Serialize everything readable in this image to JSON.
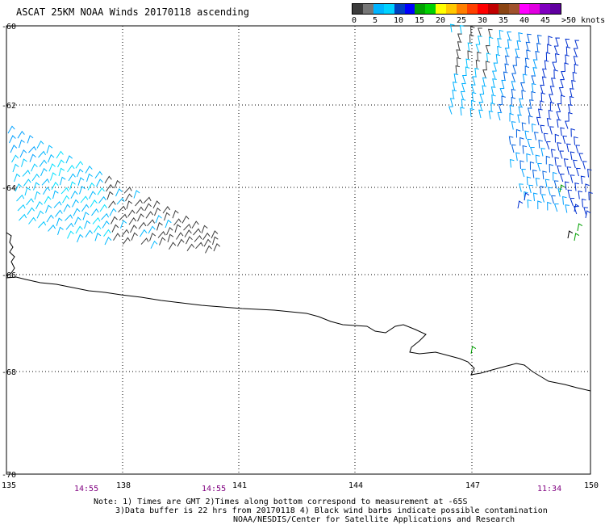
{
  "title": "ASCAT 25KM NOAA Winds 20170118 ascending",
  "legend": {
    "colors": [
      "#3c3c3c",
      "#777777",
      "#00b4ff",
      "#00d2ff",
      "#0040c0",
      "#0000ff",
      "#00a000",
      "#00d000",
      "#ffff00",
      "#ffc800",
      "#ff7f00",
      "#ff4000",
      "#ff0000",
      "#c00000",
      "#8b4513",
      "#a0522d",
      "#ff00ff",
      "#e000e0",
      "#8000c0",
      "#6000a0"
    ],
    "labels": [
      "0",
      "5",
      "10",
      "15",
      "20",
      "25",
      "30",
      "35",
      "40",
      "45",
      ">50 knots"
    ]
  },
  "axes": {
    "lat_labels": [
      "-60",
      "-62",
      "-64",
      "-66",
      "-68",
      "-70"
    ],
    "lon_labels": [
      "135",
      "138",
      "141",
      "144",
      "147",
      "150"
    ]
  },
  "times": [
    "14:55",
    "14:55",
    "11:34"
  ],
  "notes": {
    "line1": "Note: 1) Times are GMT 2)Times along bottom correspond to measurement at -65S",
    "line2": "3)Data buffer is 22 hrs from 20170118 4) Black wind barbs indicate possible contamination",
    "line3": "NOAA/NESDIS/Center for Satellite Applications and Research"
  }
}
